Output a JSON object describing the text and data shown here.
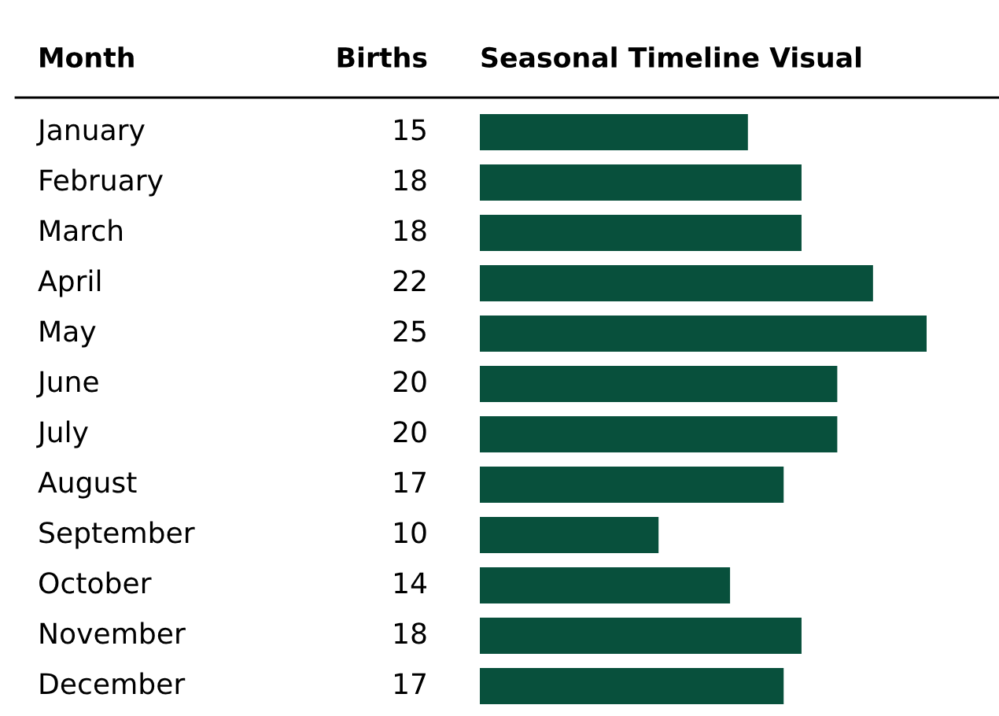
{
  "chart_data": {
    "type": "bar",
    "orientation": "horizontal",
    "title": "Seasonal Timeline Visual",
    "ylabel": "Month",
    "xlabel": "Births",
    "categories": [
      "January",
      "February",
      "March",
      "April",
      "May",
      "June",
      "July",
      "August",
      "September",
      "October",
      "November",
      "December"
    ],
    "values": [
      15,
      18,
      18,
      22,
      25,
      20,
      20,
      17,
      10,
      14,
      18,
      17
    ],
    "color": "#08503c",
    "data_labels": true
  }
}
